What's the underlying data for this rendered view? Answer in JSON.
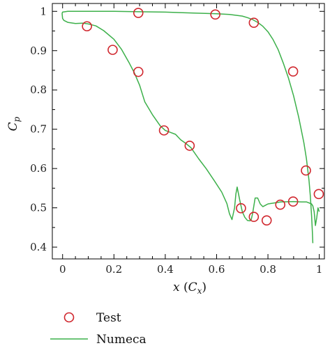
{
  "chart_data": {
    "type": "line",
    "title": "",
    "xlabel": "x (C_x)",
    "ylabel": "C_p",
    "xlim": [
      -0.04,
      1.02
    ],
    "ylim": [
      0.37,
      1.02
    ],
    "xticks": [
      0,
      0.2,
      0.4,
      0.6,
      0.8,
      1
    ],
    "xtick_labels": [
      "0",
      "0.2",
      "0.4",
      "0.6",
      "0.8",
      "1"
    ],
    "yticks": [
      0.4,
      0.5,
      0.6,
      0.7,
      0.8,
      0.9,
      1
    ],
    "ytick_labels": [
      "0.4",
      "0.5",
      "0.6",
      "0.7",
      "0.8",
      "0.9",
      "1"
    ],
    "grid": false,
    "legend_position": "bottom-left",
    "series": [
      {
        "name": "Test",
        "kind": "scatter",
        "marker": "open-circle",
        "color": "#d0262d",
        "x": [
          0.095,
          0.195,
          0.295,
          0.395,
          0.495,
          0.695,
          0.745,
          0.795,
          0.848,
          0.898,
          0.948,
          0.998,
          0.295,
          0.595,
          0.745,
          0.898
        ],
        "y": [
          0.962,
          0.902,
          0.846,
          0.697,
          0.658,
          0.499,
          0.477,
          0.468,
          0.508,
          0.516,
          0.595,
          0.535,
          0.996,
          0.992,
          0.971,
          0.847
        ]
      },
      {
        "name": "Numeca",
        "kind": "line",
        "color": "#3cb04a",
        "segments": [
          {
            "x": [
              -0.002,
              0.0,
              0.005,
              0.02,
              0.05,
              0.08,
              0.1,
              0.13,
              0.16,
              0.2,
              0.23,
              0.26,
              0.28,
              0.3,
              0.32,
              0.35,
              0.38,
              0.4,
              0.42,
              0.44,
              0.46,
              0.48,
              0.5,
              0.53,
              0.56,
              0.59,
              0.62,
              0.64,
              0.65,
              0.66,
              0.67,
              0.675,
              0.68,
              0.69,
              0.7,
              0.71,
              0.72,
              0.73,
              0.735,
              0.74,
              0.75,
              0.76,
              0.77,
              0.78,
              0.8,
              0.85,
              0.9,
              0.93,
              0.95,
              0.97,
              0.975,
              0.98,
              0.985,
              0.99,
              0.995,
              1.0
            ],
            "y": [
              0.995,
              0.982,
              0.977,
              0.972,
              0.969,
              0.97,
              0.968,
              0.963,
              0.951,
              0.929,
              0.903,
              0.868,
              0.843,
              0.812,
              0.77,
              0.737,
              0.709,
              0.697,
              0.692,
              0.687,
              0.673,
              0.664,
              0.653,
              0.625,
              0.599,
              0.57,
              0.54,
              0.511,
              0.485,
              0.47,
              0.5,
              0.535,
              0.553,
              0.52,
              0.49,
              0.476,
              0.468,
              0.467,
              0.47,
              0.485,
              0.525,
              0.525,
              0.51,
              0.503,
              0.51,
              0.515,
              0.516,
              0.515,
              0.515,
              0.51,
              0.505,
              0.49,
              0.455,
              0.475,
              0.5,
              0.49
            ]
          },
          {
            "x": [
              -0.002,
              0.0,
              0.02,
              0.05,
              0.1,
              0.2,
              0.3,
              0.4,
              0.5,
              0.6,
              0.65,
              0.7,
              0.72,
              0.74,
              0.76,
              0.78,
              0.8,
              0.82,
              0.84,
              0.86,
              0.88,
              0.9,
              0.92,
              0.94,
              0.95,
              0.96,
              0.965,
              0.97,
              0.973,
              0.975
            ],
            "y": [
              0.995,
              0.998,
              1.0,
              1.0,
              1.0,
              1.0,
              0.999,
              0.998,
              0.996,
              0.994,
              0.992,
              0.988,
              0.984,
              0.979,
              0.972,
              0.962,
              0.948,
              0.928,
              0.902,
              0.868,
              0.83,
              0.785,
              0.73,
              0.665,
              0.625,
              0.57,
              0.53,
              0.48,
              0.44,
              0.41
            ]
          }
        ]
      }
    ]
  }
}
